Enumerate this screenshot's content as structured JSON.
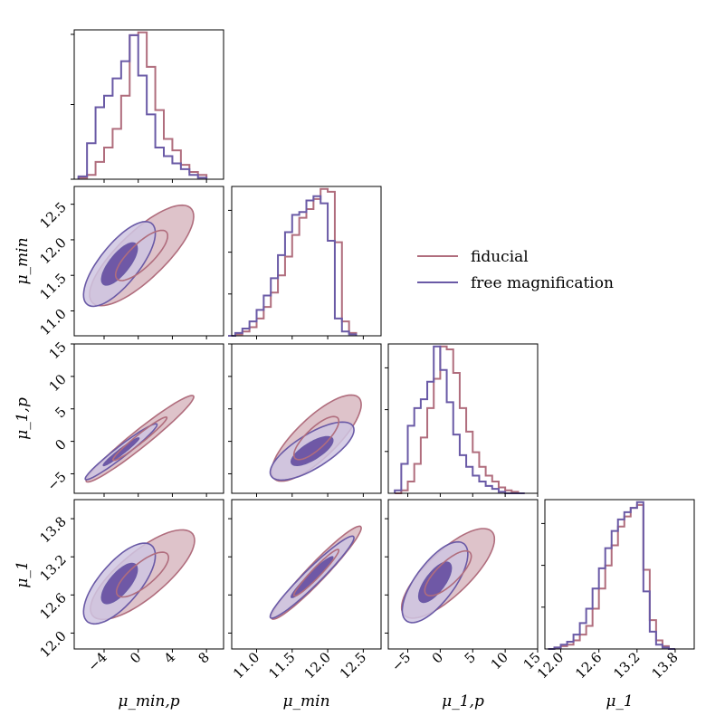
{
  "colors": {
    "fiducial": "#b06d7d",
    "free_magnification": "#6a5aa6",
    "fiducial_fill": "#dec3ca",
    "free_fill_light": "#cfc6e2",
    "free_fill_dark": "#6f58a6"
  },
  "legend": {
    "items": [
      "fiducial",
      "free magnification"
    ],
    "placement": "right-of-second-row"
  },
  "chart_data": {
    "type": "corner",
    "parameters": [
      {
        "name": "μ_min,p",
        "range": [
          -7.5,
          10
        ],
        "ticks": [
          -4,
          0,
          4,
          8
        ],
        "tick_labels": [
          "−4",
          "0",
          "4",
          "8"
        ]
      },
      {
        "name": "μ_min",
        "range": [
          10.65,
          12.75
        ],
        "ticks": [
          11.0,
          11.5,
          12.0,
          12.5
        ],
        "tick_labels": [
          "11.0",
          "11.5",
          "12.0",
          "12.5"
        ]
      },
      {
        "name": "μ_1,p",
        "range": [
          -8,
          15
        ],
        "ticks": [
          -5,
          0,
          5,
          10,
          15
        ],
        "tick_labels": [
          "−5",
          "0",
          "5",
          "10",
          "15"
        ]
      },
      {
        "name": "μ_1",
        "range": [
          11.75,
          14.1
        ],
        "ticks": [
          12.0,
          12.6,
          13.2,
          13.8
        ],
        "tick_labels": [
          "12.0",
          "12.6",
          "13.2",
          "13.8"
        ]
      }
    ],
    "series": [
      {
        "name": "fiducial",
        "histograms": [
          {
            "edges": [
              -7,
              -6,
              -5,
              -4,
              -3,
              -2,
              -1,
              0,
              1,
              2,
              3,
              4,
              5,
              6,
              7,
              8
            ],
            "counts": [
              1,
              3,
              12,
              22,
              35,
              58,
              100,
              102,
              78,
              48,
              28,
              20,
              10,
              5,
              3,
              1
            ]
          },
          {
            "edges": [
              10.6,
              10.7,
              10.8,
              10.9,
              11.0,
              11.1,
              11.2,
              11.3,
              11.4,
              11.5,
              11.6,
              11.7,
              11.8,
              11.9,
              12.0,
              12.1,
              12.2,
              12.3,
              12.4
            ],
            "counts": [
              0,
              1,
              3,
              6,
              12,
              20,
              30,
              42,
              55,
              70,
              82,
              88,
              95,
              102,
              100,
              65,
              10,
              2
            ]
          },
          {
            "edges": [
              -7,
              -6,
              -5,
              -4,
              -3,
              -2,
              -1,
              0,
              1,
              2,
              3,
              4,
              5,
              6,
              7,
              8,
              9,
              10,
              11,
              12,
              13
            ],
            "counts": [
              0,
              2,
              8,
              20,
              38,
              58,
              78,
              100,
              98,
              82,
              58,
              42,
              28,
              18,
              12,
              8,
              4,
              2,
              1,
              0
            ]
          },
          {
            "edges": [
              11.8,
              11.9,
              12.0,
              12.1,
              12.2,
              12.3,
              12.4,
              12.5,
              12.6,
              12.7,
              12.8,
              12.9,
              13.0,
              13.1,
              13.2,
              13.3,
              13.4,
              13.5,
              13.6,
              13.7,
              13.8
            ],
            "counts": [
              0,
              1,
              2,
              3,
              6,
              10,
              16,
              28,
              42,
              58,
              72,
              85,
              92,
              98,
              100,
              55,
              20,
              6,
              2,
              0
            ]
          }
        ]
      },
      {
        "name": "free magnification",
        "histograms": [
          {
            "edges": [
              -7,
              -6,
              -5,
              -4,
              -3,
              -2,
              -1,
              0,
              1,
              2,
              3,
              4,
              5,
              6,
              7,
              8
            ],
            "counts": [
              2,
              25,
              50,
              58,
              70,
              82,
              100,
              72,
              45,
              22,
              16,
              11,
              7,
              3,
              1,
              0
            ]
          },
          {
            "edges": [
              10.6,
              10.7,
              10.8,
              10.9,
              11.0,
              11.1,
              11.2,
              11.3,
              11.4,
              11.5,
              11.6,
              11.7,
              11.8,
              11.9,
              12.0,
              12.1,
              12.2,
              12.3,
              12.4
            ],
            "counts": [
              0,
              2,
              5,
              10,
              18,
              28,
              40,
              56,
              72,
              84,
              86,
              94,
              97,
              92,
              66,
              12,
              3,
              1
            ]
          },
          {
            "edges": [
              -7,
              -6,
              -5,
              -4,
              -3,
              -2,
              -1,
              0,
              1,
              2,
              3,
              4,
              5,
              6,
              7,
              8,
              9,
              10,
              11,
              12,
              13
            ],
            "counts": [
              2,
              20,
              46,
              58,
              64,
              76,
              100,
              84,
              62,
              40,
              26,
              18,
              12,
              8,
              5,
              3,
              1,
              0,
              0,
              0
            ]
          },
          {
            "edges": [
              11.8,
              11.9,
              12.0,
              12.1,
              12.2,
              12.3,
              12.4,
              12.5,
              12.6,
              12.7,
              12.8,
              12.9,
              13.0,
              13.1,
              13.2,
              13.3,
              13.4,
              13.5,
              13.6,
              13.7,
              13.8
            ],
            "counts": [
              0,
              1,
              3,
              5,
              10,
              18,
              28,
              42,
              56,
              70,
              82,
              90,
              95,
              98,
              102,
              40,
              12,
              3,
              1,
              0
            ]
          }
        ]
      }
    ],
    "contours": [
      {
        "row": 1,
        "col": 0,
        "fiducial": {
          "center": [
            0.4,
            11.78
          ],
          "sx": 2.9,
          "sy": 0.33,
          "rho": 0.72
        },
        "free": {
          "center": [
            -2.2,
            11.66
          ],
          "sx": 2.0,
          "sy": 0.28,
          "rho": 0.66
        }
      },
      {
        "row": 2,
        "col": 0,
        "fiducial": {
          "center": [
            0.2,
            0.4
          ],
          "sx": 3.0,
          "sy": 3.1,
          "rho": 0.96
        },
        "free": {
          "center": [
            -2.0,
            -1.6
          ],
          "sx": 2.0,
          "sy": 2.0,
          "rho": 0.96
        }
      },
      {
        "row": 2,
        "col": 1,
        "fiducial": {
          "center": [
            11.84,
            0.5
          ],
          "sx": 0.3,
          "sy": 3.1,
          "rho": 0.72
        },
        "free": {
          "center": [
            11.78,
            -1.5
          ],
          "sx": 0.28,
          "sy": 2.1,
          "rho": 0.66
        }
      },
      {
        "row": 3,
        "col": 0,
        "fiducial": {
          "center": [
            0.5,
            12.92
          ],
          "sx": 2.9,
          "sy": 0.33,
          "rho": 0.7
        },
        "free": {
          "center": [
            -2.2,
            12.78
          ],
          "sx": 2.0,
          "sy": 0.3,
          "rho": 0.62
        }
      },
      {
        "row": 3,
        "col": 1,
        "fiducial": {
          "center": [
            11.84,
            12.95
          ],
          "sx": 0.3,
          "sy": 0.34,
          "rho": 0.95
        },
        "free": {
          "center": [
            11.78,
            12.88
          ],
          "sx": 0.28,
          "sy": 0.3,
          "rho": 0.95
        }
      },
      {
        "row": 3,
        "col": 2,
        "fiducial": {
          "center": [
            1.2,
            12.94
          ],
          "sx": 3.4,
          "sy": 0.33,
          "rho": 0.7
        },
        "free": {
          "center": [
            -0.8,
            12.8
          ],
          "sx": 2.4,
          "sy": 0.3,
          "rho": 0.62
        }
      }
    ],
    "contour_levels_sigma": [
      1,
      2
    ],
    "grid": false
  }
}
